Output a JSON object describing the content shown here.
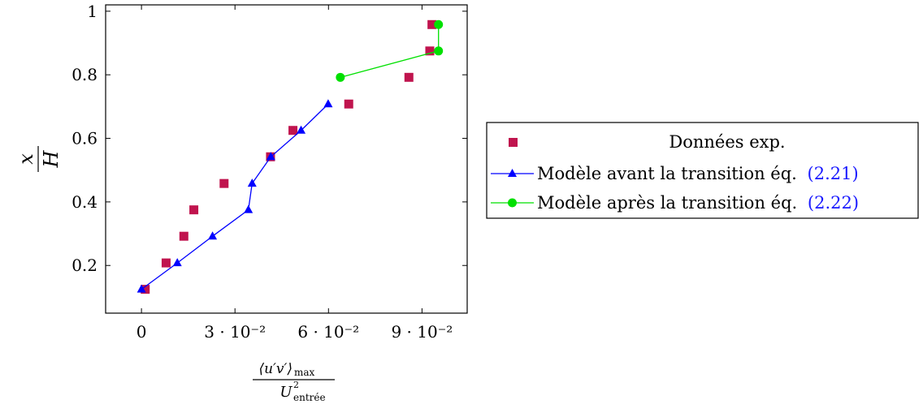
{
  "chart_data": {
    "type": "scatter",
    "title": "",
    "xlabel": {
      "numerator": "⟨u′v′⟩",
      "numerator_sub": "max",
      "denominator": "U",
      "denominator_sup": "2",
      "denominator_sub": "entrée"
    },
    "ylabel": {
      "numerator": "x",
      "denominator": "H"
    },
    "xlim": [
      -0.0115,
      0.1045
    ],
    "ylim": [
      0.05,
      1.02
    ],
    "x_ticks": [
      {
        "value": 0,
        "label": "0"
      },
      {
        "value": 0.03,
        "label": "3 · 10⁻²"
      },
      {
        "value": 0.06,
        "label": "6 · 10⁻²"
      },
      {
        "value": 0.09,
        "label": "9 · 10⁻²"
      }
    ],
    "y_ticks": [
      {
        "value": 0.2,
        "label": "0.2"
      },
      {
        "value": 0.4,
        "label": "0.4"
      },
      {
        "value": 0.6,
        "label": "0.6"
      },
      {
        "value": 0.8,
        "label": "0.8"
      },
      {
        "value": 1,
        "label": "1"
      }
    ],
    "grid": false,
    "legend_position": "right",
    "series": [
      {
        "name": "Données exp.",
        "type": "scatter",
        "marker": "square",
        "color": "#C0144E",
        "x": [
          0.0012,
          0.0079,
          0.0136,
          0.0168,
          0.0265,
          0.0414,
          0.0486,
          0.0665,
          0.0858,
          0.0925,
          0.0932
        ],
        "y": [
          0.125,
          0.208,
          0.292,
          0.375,
          0.458,
          0.542,
          0.625,
          0.708,
          0.792,
          0.875,
          0.958
        ]
      },
      {
        "name": "Modèle avant la transition éq.",
        "ref": "(2.21)",
        "type": "line",
        "marker": "triangle",
        "color": "#0000FF",
        "x": [
          0.0,
          0.0115,
          0.0228,
          0.0343,
          0.0355,
          0.0415,
          0.0512,
          0.0599
        ],
        "y": [
          0.125,
          0.208,
          0.292,
          0.375,
          0.458,
          0.542,
          0.625,
          0.708
        ]
      },
      {
        "name": "Modèle après la transition éq.",
        "ref": "(2.22)",
        "type": "line",
        "marker": "circle",
        "color": "#00E000",
        "x": [
          0.0638,
          0.0953,
          0.0953
        ],
        "y": [
          0.792,
          0.875,
          0.958
        ]
      }
    ]
  }
}
